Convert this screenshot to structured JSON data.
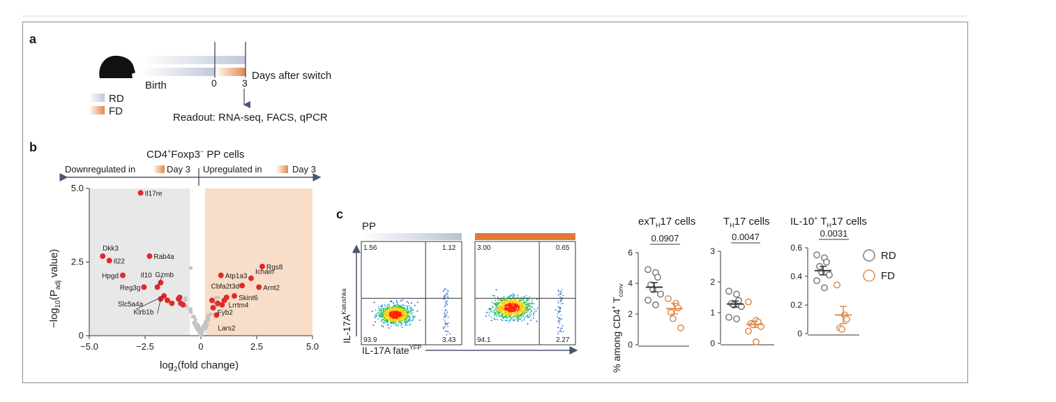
{
  "panel_a": {
    "label": "a",
    "birth": "Birth",
    "t0": "0",
    "t3": "3",
    "days_after": "Days after switch",
    "legend": [
      {
        "label": "RD",
        "color": "#c5cbd9"
      },
      {
        "label": "FD",
        "color": "#e08a4a"
      }
    ],
    "readout": "Readout: RNA-seq, FACS, qPCR"
  },
  "panel_b": {
    "label": "b",
    "title_pre": "CD4",
    "title_sup1": "+",
    "title_mid": "Foxp3",
    "title_sup2": "−",
    "title_post": " PP cells",
    "down_label": "Downregulated in",
    "up_label": "Upregulated in",
    "day_label": "Day 3",
    "xlabel_pre": "log",
    "xlabel_sub": "2",
    "xlabel_post": "(fold change)",
    "ylabel_pre": "−log",
    "ylabel_sub1": "10",
    "ylabel_mid": "(P",
    "ylabel_sub2": "adj",
    "ylabel_post": " value)"
  },
  "panel_c": {
    "label": "c",
    "tissue": "PP",
    "yaxis_pre": "IL-17A",
    "yaxis_sup": "Katushka",
    "xaxis_pre": "IL-17A fate",
    "xaxis_sup": "YFP",
    "rd_quadrants": {
      "ul": "1.56",
      "ur": "1.12",
      "ll": "93.9",
      "lr": "3.43"
    },
    "fd_quadrants": {
      "ul": "3.00",
      "ur": "0.65",
      "ll": "94.1",
      "lr": "2.27"
    },
    "dot_ylabel_pre": "% among CD4",
    "dot_ylabel_sup": "+",
    "dot_ylabel_mid": " T",
    "dot_ylabel_sub": "conv",
    "legend": [
      {
        "label": "RD",
        "color": "#7a7a7a"
      },
      {
        "label": "FD",
        "color": "#e08a4a"
      }
    ]
  },
  "chart_data": [
    {
      "type": "scatter",
      "title": "CD4+Foxp3− PP cells",
      "xlabel": "log2(fold change)",
      "ylabel": "−log10(Padj value)",
      "xlim": [
        -5.0,
        5.0
      ],
      "ylim": [
        0,
        5.0
      ],
      "xticks": [
        "−5.0",
        "−2.5",
        "0",
        "2.5",
        "5.0"
      ],
      "yticks": [
        "0",
        "2.5",
        "5.0"
      ],
      "highlighted": [
        {
          "gene": "Il17re",
          "x": -2.7,
          "y": 4.85
        },
        {
          "gene": "Dkk3",
          "x": -4.4,
          "y": 2.7
        },
        {
          "gene": "Il22",
          "x": -4.1,
          "y": 2.55
        },
        {
          "gene": "Rab4a",
          "x": -2.3,
          "y": 2.7
        },
        {
          "gene": "Hpgd",
          "x": -3.5,
          "y": 2.05
        },
        {
          "gene": "Gzmb",
          "x": -1.8,
          "y": 1.8
        },
        {
          "gene": "Il10",
          "x": -1.95,
          "y": 1.65
        },
        {
          "gene": "Reg3g",
          "x": -2.55,
          "y": 1.65
        },
        {
          "gene": "Slc5a4a",
          "x": -1.65,
          "y": 1.35
        },
        {
          "gene": "Klrb1b",
          "x": -1.8,
          "y": 1.25
        },
        {
          "gene": "Rgs8",
          "x": 2.75,
          "y": 2.35
        },
        {
          "gene": "Atp1a3",
          "x": 0.9,
          "y": 2.05
        },
        {
          "gene": "Ichain",
          "x": 2.25,
          "y": 1.95
        },
        {
          "gene": "Cbfa2t3d",
          "x": 1.85,
          "y": 1.7
        },
        {
          "gene": "Arnt2",
          "x": 2.6,
          "y": 1.65
        },
        {
          "gene": "Skint6",
          "x": 1.5,
          "y": 1.35
        },
        {
          "gene": "Lrrtm4",
          "x": 1.05,
          "y": 1.2
        },
        {
          "gene": "Fyb2",
          "x": 0.55,
          "y": 0.95
        },
        {
          "gene": "Lars2",
          "x": 0.7,
          "y": 0.7
        }
      ],
      "other_significant": [
        {
          "x": -1.5,
          "y": 1.2
        },
        {
          "x": -1.3,
          "y": 1.1
        },
        {
          "x": -1.0,
          "y": 1.25
        },
        {
          "x": -0.9,
          "y": 1.1
        },
        {
          "x": -0.8,
          "y": 1.05
        },
        {
          "x": -0.95,
          "y": 1.3
        },
        {
          "x": 0.5,
          "y": 1.2
        },
        {
          "x": 0.75,
          "y": 1.1
        },
        {
          "x": 0.95,
          "y": 1.05
        },
        {
          "x": 1.15,
          "y": 1.3
        }
      ],
      "nonsignificant_note": "grey points near x = 0"
    },
    {
      "type": "scatter",
      "title": "exTH17 cells",
      "p_value": "0.0907",
      "ylim": [
        0,
        6
      ],
      "yticks": [
        "0",
        "2",
        "4",
        "6"
      ],
      "series": [
        {
          "name": "RD",
          "values": [
            4.9,
            4.7,
            4.4,
            3.9,
            3.6,
            3.3,
            2.9,
            2.6
          ],
          "mean": 3.75,
          "sem": 0.3
        },
        {
          "name": "FD",
          "values": [
            3.0,
            2.7,
            2.4,
            2.1,
            1.7,
            1.1
          ],
          "mean": 2.35,
          "sem": 0.35
        }
      ]
    },
    {
      "type": "scatter",
      "title": "TH17 cells",
      "p_value": "0.0047",
      "ylim": [
        0,
        3
      ],
      "yticks": [
        "0",
        "1",
        "2",
        "3"
      ],
      "series": [
        {
          "name": "RD",
          "values": [
            1.7,
            1.6,
            1.4,
            1.3,
            1.25,
            1.2,
            0.85,
            0.8
          ],
          "mean": 1.28,
          "sem": 0.1
        },
        {
          "name": "FD",
          "values": [
            1.35,
            0.75,
            0.7,
            0.65,
            0.6,
            0.55,
            0.4,
            0.05
          ],
          "mean": 0.62,
          "sem": 0.1
        }
      ]
    },
    {
      "type": "scatter",
      "title": "IL-10+ TH17 cells",
      "p_value": "0.0031",
      "ylim": [
        0,
        0.6
      ],
      "yticks": [
        "0",
        "0.2",
        "0.4",
        "0.6"
      ],
      "series": [
        {
          "name": "RD",
          "values": [
            0.55,
            0.53,
            0.5,
            0.47,
            0.43,
            0.41,
            0.37,
            0.32
          ],
          "mean": 0.44,
          "sem": 0.03
        },
        {
          "name": "FD",
          "values": [
            0.34,
            0.13,
            0.1,
            0.04,
            0.03
          ],
          "mean": 0.13,
          "sem": 0.06
        }
      ]
    }
  ]
}
